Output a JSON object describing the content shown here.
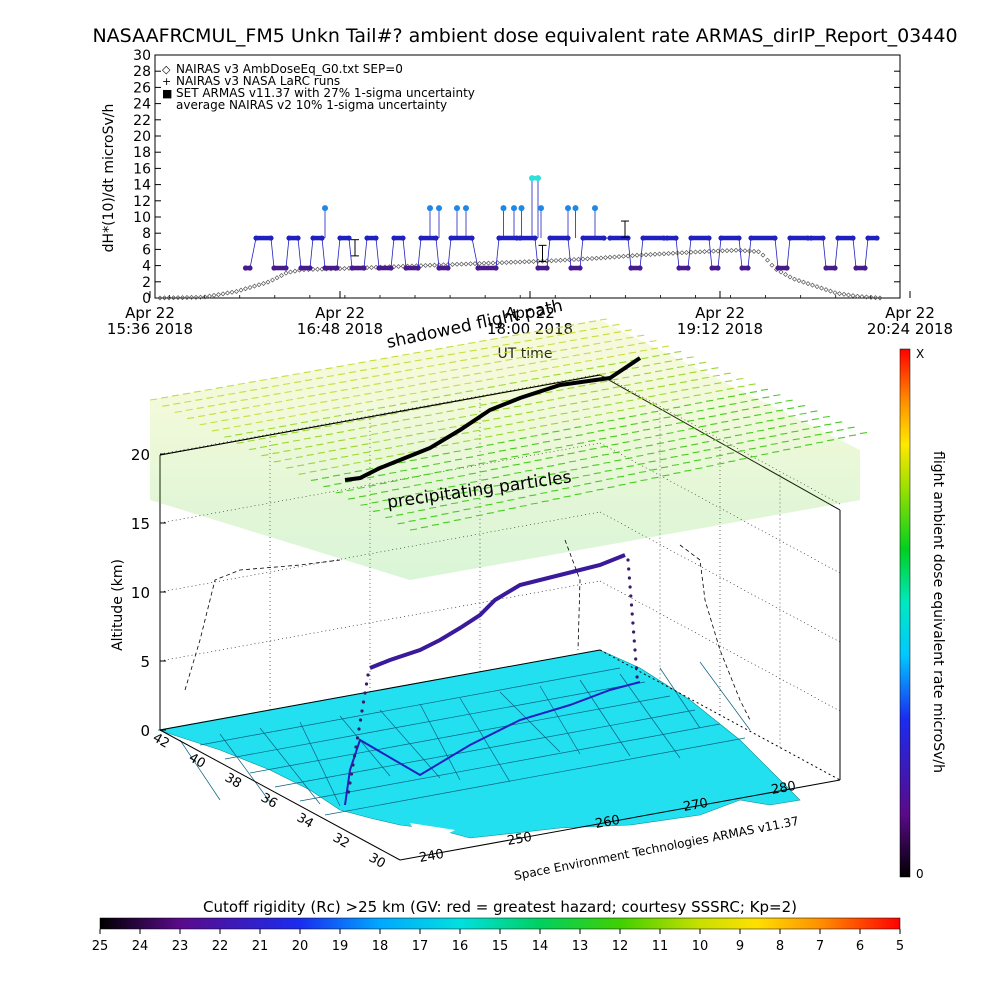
{
  "title": "NASAAFRCMUL_FM5 Unkn Tail#? ambient dose equivalent rate ARMAS_dirIP_Report_03440",
  "chart_data": [
    {
      "type": "scatter",
      "ylabel": "dH*(10)/dt microSv/h",
      "xlabel": "UT time",
      "ylim": [
        0,
        30
      ],
      "yticks": [
        "0",
        "2",
        "4",
        "6",
        "8",
        "10",
        "12",
        "14",
        "16",
        "18",
        "20",
        "22",
        "24",
        "26",
        "28",
        "30"
      ],
      "xticks": [
        {
          "line1": "Apr 22",
          "line2": "15:36 2018"
        },
        {
          "line1": "Apr 22",
          "line2": "16:48 2018"
        },
        {
          "line1": "Apr 22",
          "line2": "18:00 2018"
        },
        {
          "line1": "Apr 22",
          "line2": "19:12 2018"
        },
        {
          "line1": "Apr 22",
          "line2": "20:24 2018"
        }
      ],
      "xlim_minutes_from_first_tick": [
        0,
        288
      ],
      "legend": [
        {
          "symbol": "◇",
          "text": "NAIRAS v3 AmbDoseEq_G0.txt SEP=0"
        },
        {
          "symbol": "+",
          "text": "NAIRAS v3 NASA LaRC runs"
        },
        {
          "symbol": "■",
          "text": "SET ARMAS v11.37 with 27% 1-sigma uncertainty"
        },
        {
          "symbol": "",
          "text": "average NAIRAS v2 10% 1-sigma uncertainty"
        }
      ],
      "legend_position": "top-left",
      "series": [
        {
          "name": "NAIRAS v3 AmbDoseEq_G0.txt SEP=0",
          "color": "#555555",
          "points": [
            [
              0,
              0
            ],
            [
              20,
              0.1
            ],
            [
              35,
              0.8
            ],
            [
              50,
              2
            ],
            [
              58,
              3.1
            ],
            [
              65,
              3.5
            ],
            [
              80,
              3.6
            ],
            [
              100,
              3.8
            ],
            [
              120,
              4
            ],
            [
              140,
              4.2
            ],
            [
              160,
              4.4
            ],
            [
              180,
              4.6
            ],
            [
              200,
              4.9
            ],
            [
              220,
              5.3
            ],
            [
              240,
              5.6
            ],
            [
              255,
              5.8
            ],
            [
              265,
              5.9
            ],
            [
              275,
              5.7
            ],
            [
              282,
              3.6
            ],
            [
              290,
              2.4
            ],
            [
              300,
              1.5
            ],
            [
              310,
              0.6
            ],
            [
              320,
              0.2
            ],
            [
              330,
              0
            ]
          ]
        },
        {
          "name": "SET ARMAS v11.37 with 27% 1-sigma uncertainty",
          "color": "#2020c0",
          "segments": [
            {
              "x": [
                57,
                60
              ],
              "y": 3.7,
              "color": "#4b1a8a"
            },
            {
              "x": [
                64,
                74
              ],
              "y": 7.4,
              "color": "#2020c0"
            },
            {
              "x": [
                76,
                84
              ],
              "y": 3.7,
              "color": "#4b1a8a"
            },
            {
              "x": [
                86,
                92
              ],
              "y": 7.4,
              "color": "#2020c0"
            },
            {
              "x": [
                94,
                100
              ],
              "y": 3.7,
              "color": "#4b1a8a"
            },
            {
              "x": [
                102,
                108
              ],
              "y": 7.4,
              "color": "#2020c0"
            },
            {
              "x": [
                110,
                118
              ],
              "y": 3.7,
              "color": "#4b1a8a"
            },
            {
              "x": [
                120,
                126
              ],
              "y": 7.4,
              "color": "#2020c0"
            },
            {
              "x": [
                128,
                136
              ],
              "y": 3.7,
              "color": "#4b1a8a"
            },
            {
              "x": [
                138,
                144
              ],
              "y": 7.4,
              "color": "#2020c0"
            },
            {
              "x": [
                146,
                154
              ],
              "y": 3.7,
              "color": "#4b1a8a"
            },
            {
              "x": [
                156,
                162
              ],
              "y": 7.4,
              "color": "#2020c0"
            },
            {
              "x": [
                164,
                172
              ],
              "y": 3.7,
              "color": "#4b1a8a"
            },
            {
              "x": [
                174,
                184
              ],
              "y": 7.4,
              "color": "#2020c0"
            },
            {
              "x": [
                186,
                192
              ],
              "y": 3.7,
              "color": "#4b1a8a"
            },
            {
              "x": [
                194,
                208
              ],
              "y": 7.4,
              "color": "#2020c0"
            },
            {
              "x": [
                212,
                224
              ],
              "y": 3.7,
              "color": "#4b1a8a"
            },
            {
              "x": [
                226,
                238
              ],
              "y": 7.4,
              "color": "#2020c0"
            },
            {
              "x": [
                240,
                250
              ],
              "y": 7.4,
              "color": "#2020c0"
            },
            {
              "x": [
                252,
                258
              ],
              "y": 3.7,
              "color": "#4b1a8a"
            },
            {
              "x": [
                260,
                272
              ],
              "y": 7.4,
              "color": "#2020c0"
            },
            {
              "x": [
                274,
                280
              ],
              "y": 3.7,
              "color": "#4b1a8a"
            },
            {
              "x": [
                282,
                296
              ],
              "y": 7.4,
              "color": "#2020c0"
            },
            {
              "x": [
                300,
                312
              ],
              "y": 7.4,
              "color": "#2020c0"
            },
            {
              "x": [
                314,
                320
              ],
              "y": 3.7,
              "color": "#4b1a8a"
            },
            {
              "x": [
                322,
                336
              ],
              "y": 7.4,
              "color": "#2020c0"
            },
            {
              "x": [
                338,
                344
              ],
              "y": 7.4,
              "color": "#2020c0"
            },
            {
              "x": [
                346,
                352
              ],
              "y": 3.7,
              "color": "#4b1a8a"
            },
            {
              "x": [
                354,
                366
              ],
              "y": 7.4,
              "color": "#2020c0"
            },
            {
              "x": [
                368,
                372
              ],
              "y": 3.7,
              "color": "#4b1a8a"
            },
            {
              "x": [
                374,
                386
              ],
              "y": 7.4,
              "color": "#2020c0"
            },
            {
              "x": [
                388,
                392
              ],
              "y": 3.7,
              "color": "#4b1a8a"
            },
            {
              "x": [
                394,
                410
              ],
              "y": 7.4,
              "color": "#2020c0"
            },
            {
              "x": [
                412,
                418
              ],
              "y": 3.7,
              "color": "#4b1a8a"
            },
            {
              "x": [
                420,
                432
              ],
              "y": 7.4,
              "color": "#2020c0"
            },
            {
              "x": [
                434,
                442
              ],
              "y": 7.4,
              "color": "#2020c0"
            },
            {
              "x": [
                444,
                450
              ],
              "y": 3.7,
              "color": "#4b1a8a"
            },
            {
              "x": [
                452,
                462
              ],
              "y": 7.4,
              "color": "#2020c0"
            },
            {
              "x": [
                464,
                470
              ],
              "y": 3.7,
              "color": "#4b1a8a"
            },
            {
              "x": [
                472,
                478
              ],
              "y": 7.4,
              "color": "#2020c0"
            }
          ]
        }
      ],
      "armas_points": [
        {
          "x": 110,
          "y": 11.1,
          "color": "#1e88e5"
        },
        {
          "x": 180,
          "y": 11.1,
          "color": "#1e88e5"
        },
        {
          "x": 186,
          "y": 11.1,
          "color": "#1e88e5"
        },
        {
          "x": 198,
          "y": 11.1,
          "color": "#1e88e5"
        },
        {
          "x": 204,
          "y": 11.1,
          "color": "#1e88e5"
        },
        {
          "x": 229,
          "y": 11.1,
          "color": "#1e88e5"
        },
        {
          "x": 236,
          "y": 11.1,
          "color": "#1e88e5"
        },
        {
          "x": 241,
          "y": 11.1,
          "color": "#1e88e5"
        },
        {
          "x": 248,
          "y": 14.8,
          "color": "#2ee0d8"
        },
        {
          "x": 252,
          "y": 14.8,
          "color": "#2ee0d8"
        },
        {
          "x": 254,
          "y": 11.1,
          "color": "#1e88e5"
        },
        {
          "x": 272,
          "y": 11.1,
          "color": "#1e88e5"
        },
        {
          "x": 277,
          "y": 11.1,
          "color": "#1e88e5"
        },
        {
          "x": 290,
          "y": 11.1,
          "color": "#1e88e5"
        }
      ]
    },
    {
      "type": "3d-trajectory",
      "zlabel": "Altitude (km)",
      "zticks": [
        "0",
        "5",
        "10",
        "15",
        "20"
      ],
      "xticks": [
        "240",
        "250",
        "260",
        "270",
        "280"
      ],
      "yticks": [
        "30",
        "32",
        "34",
        "36",
        "38",
        "40",
        "42"
      ],
      "annotations": [
        "shadowed flight path",
        "precipitating particles"
      ],
      "credit": "Space Environment Technologies ARMAS v11.37",
      "colorbar": {
        "label": "flight ambient dose equivalent rate microSv/h",
        "top": "X",
        "bottom": "0"
      },
      "cutoff_colorbar": {
        "label": "Cutoff rigidity (Rc) >25 km (GV: red = greatest hazard; courtesy SSSRC; Kp=2)",
        "ticks": [
          "25",
          "24",
          "23",
          "22",
          "21",
          "20",
          "19",
          "18",
          "17",
          "16",
          "15",
          "14",
          "13",
          "12",
          "11",
          "10",
          "9",
          "8",
          "7",
          "6",
          "5"
        ]
      }
    }
  ]
}
